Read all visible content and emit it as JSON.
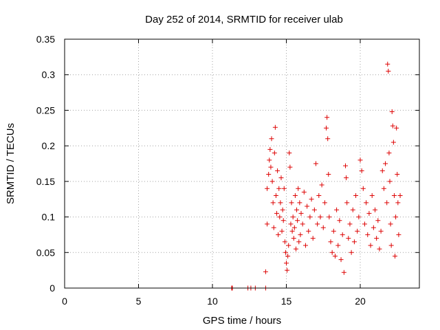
{
  "chart_data": {
    "type": "scatter",
    "title": "Day 252 of 2014, SRMTID for receiver ulab",
    "xlabel": "GPS time / hours",
    "ylabel": "SRMTID / TECUs",
    "xlim": [
      0,
      24
    ],
    "ylim": [
      0,
      0.35
    ],
    "grid": true,
    "marker": "+",
    "colors": {
      "points": "#dd0000",
      "grid": "#a0a0a0",
      "axes": "#000000"
    },
    "x_ticks": [
      {
        "value": 0,
        "label": "0"
      },
      {
        "value": 5,
        "label": "5"
      },
      {
        "value": 10,
        "label": "10"
      },
      {
        "value": 15,
        "label": "15"
      },
      {
        "value": 20,
        "label": "20"
      }
    ],
    "y_ticks": [
      {
        "value": 0,
        "label": "0"
      },
      {
        "value": 0.05,
        "label": "0.05"
      },
      {
        "value": 0.1,
        "label": "0.1"
      },
      {
        "value": 0.15,
        "label": "0.15"
      },
      {
        "value": 0.2,
        "label": "0.2"
      },
      {
        "value": 0.25,
        "label": "0.25"
      },
      {
        "value": 0.3,
        "label": "0.3"
      },
      {
        "value": 0.35,
        "label": "0.35"
      }
    ],
    "series": [
      {
        "name": "SRMTID",
        "points": [
          [
            11.3,
            0.0
          ],
          [
            11.35,
            0.0
          ],
          [
            12.4,
            0.0
          ],
          [
            12.6,
            0.0
          ],
          [
            12.9,
            0.0
          ],
          [
            13.6,
            0.0
          ],
          [
            13.6,
            0.023
          ],
          [
            13.7,
            0.14
          ],
          [
            13.7,
            0.09
          ],
          [
            13.8,
            0.16
          ],
          [
            13.85,
            0.18
          ],
          [
            13.9,
            0.195
          ],
          [
            13.95,
            0.17
          ],
          [
            14.0,
            0.21
          ],
          [
            14.05,
            0.15
          ],
          [
            14.1,
            0.12
          ],
          [
            14.15,
            0.085
          ],
          [
            14.2,
            0.19
          ],
          [
            14.25,
            0.226
          ],
          [
            14.3,
            0.13
          ],
          [
            14.35,
            0.105
          ],
          [
            14.4,
            0.165
          ],
          [
            14.45,
            0.075
          ],
          [
            14.5,
            0.14
          ],
          [
            14.55,
            0.1
          ],
          [
            14.6,
            0.12
          ],
          [
            14.65,
            0.155
          ],
          [
            14.7,
            0.08
          ],
          [
            14.75,
            0.11
          ],
          [
            14.8,
            0.095
          ],
          [
            14.85,
            0.14
          ],
          [
            14.9,
            0.065
          ],
          [
            14.95,
            0.05
          ],
          [
            15.0,
            0.035
          ],
          [
            15.05,
            0.025
          ],
          [
            15.1,
            0.045
          ],
          [
            15.15,
            0.06
          ],
          [
            15.2,
            0.19
          ],
          [
            15.25,
            0.17
          ],
          [
            15.3,
            0.09
          ],
          [
            15.35,
            0.12
          ],
          [
            15.4,
            0.08
          ],
          [
            15.45,
            0.1
          ],
          [
            15.5,
            0.07
          ],
          [
            15.55,
            0.085
          ],
          [
            15.6,
            0.13
          ],
          [
            15.65,
            0.055
          ],
          [
            15.7,
            0.11
          ],
          [
            15.75,
            0.095
          ],
          [
            15.8,
            0.14
          ],
          [
            15.85,
            0.065
          ],
          [
            15.9,
            0.12
          ],
          [
            15.95,
            0.075
          ],
          [
            16.0,
            0.105
          ],
          [
            16.1,
            0.09
          ],
          [
            16.2,
            0.135
          ],
          [
            16.3,
            0.06
          ],
          [
            16.4,
            0.115
          ],
          [
            16.5,
            0.08
          ],
          [
            16.6,
            0.1
          ],
          [
            16.7,
            0.125
          ],
          [
            16.8,
            0.07
          ],
          [
            16.9,
            0.11
          ],
          [
            17.0,
            0.175
          ],
          [
            17.1,
            0.09
          ],
          [
            17.2,
            0.13
          ],
          [
            17.3,
            0.1
          ],
          [
            17.4,
            0.145
          ],
          [
            17.5,
            0.085
          ],
          [
            17.6,
            0.12
          ],
          [
            17.7,
            0.225
          ],
          [
            17.75,
            0.24
          ],
          [
            17.8,
            0.21
          ],
          [
            17.85,
            0.16
          ],
          [
            17.9,
            0.1
          ],
          [
            18.0,
            0.065
          ],
          [
            18.1,
            0.05
          ],
          [
            18.2,
            0.08
          ],
          [
            18.3,
            0.045
          ],
          [
            18.4,
            0.11
          ],
          [
            18.5,
            0.06
          ],
          [
            18.6,
            0.095
          ],
          [
            18.7,
            0.04
          ],
          [
            18.8,
            0.075
          ],
          [
            18.9,
            0.022
          ],
          [
            19.0,
            0.172
          ],
          [
            19.05,
            0.155
          ],
          [
            19.1,
            0.12
          ],
          [
            19.2,
            0.07
          ],
          [
            19.3,
            0.09
          ],
          [
            19.4,
            0.05
          ],
          [
            19.5,
            0.11
          ],
          [
            19.6,
            0.065
          ],
          [
            19.7,
            0.13
          ],
          [
            19.8,
            0.08
          ],
          [
            19.9,
            0.1
          ],
          [
            20.0,
            0.18
          ],
          [
            20.1,
            0.165
          ],
          [
            20.2,
            0.14
          ],
          [
            20.3,
            0.09
          ],
          [
            20.4,
            0.12
          ],
          [
            20.5,
            0.075
          ],
          [
            20.6,
            0.105
          ],
          [
            20.7,
            0.06
          ],
          [
            20.8,
            0.13
          ],
          [
            20.9,
            0.085
          ],
          [
            21.0,
            0.11
          ],
          [
            21.1,
            0.07
          ],
          [
            21.2,
            0.095
          ],
          [
            21.3,
            0.055
          ],
          [
            21.4,
            0.08
          ],
          [
            21.5,
            0.165
          ],
          [
            21.6,
            0.14
          ],
          [
            21.7,
            0.175
          ],
          [
            21.8,
            0.12
          ],
          [
            21.85,
            0.315
          ],
          [
            21.9,
            0.305
          ],
          [
            21.95,
            0.19
          ],
          [
            22.0,
            0.15
          ],
          [
            22.05,
            0.09
          ],
          [
            22.1,
            0.06
          ],
          [
            22.15,
            0.248
          ],
          [
            22.2,
            0.228
          ],
          [
            22.25,
            0.205
          ],
          [
            22.3,
            0.13
          ],
          [
            22.35,
            0.045
          ],
          [
            22.4,
            0.1
          ],
          [
            22.45,
            0.225
          ],
          [
            22.5,
            0.16
          ],
          [
            22.55,
            0.12
          ],
          [
            22.6,
            0.075
          ],
          [
            22.7,
            0.13
          ]
        ]
      }
    ]
  }
}
